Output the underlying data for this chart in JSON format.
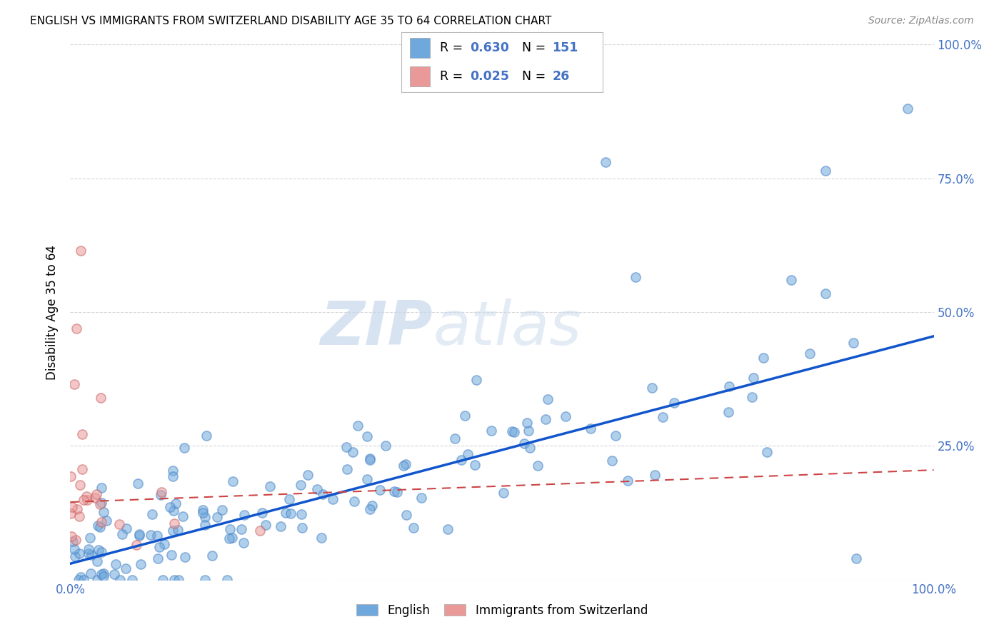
{
  "title": "ENGLISH VS IMMIGRANTS FROM SWITZERLAND DISABILITY AGE 35 TO 64 CORRELATION CHART",
  "source": "Source: ZipAtlas.com",
  "ylabel": "Disability Age 35 to 64",
  "legend_label_english": "English",
  "legend_label_swiss": "Immigrants from Switzerland",
  "watermark_zip": "ZIP",
  "watermark_atlas": "atlas",
  "english_color": "#6fa8dc",
  "english_edge_color": "#4a86c8",
  "swiss_color": "#ea9999",
  "swiss_edge_color": "#cc6666",
  "english_line_color": "#1155cc",
  "swiss_line_color": "#cc4444",
  "background_color": "#ffffff",
  "grid_color": "#cccccc",
  "tick_color": "#4472c4",
  "title_color": "#000000",
  "source_color": "#888888",
  "ylabel_color": "#000000",
  "legend_r_color": "#4472c4",
  "legend_n_color": "#4472c4",
  "legend_text_color": "#000000",
  "xlim": [
    0.0,
    1.0
  ],
  "ylim": [
    0.0,
    1.0
  ],
  "x_ticks": [
    0.0,
    0.25,
    0.5,
    0.75,
    1.0
  ],
  "y_ticks": [
    0.0,
    0.25,
    0.5,
    0.75,
    1.0
  ],
  "x_tick_labels": [
    "0.0%",
    "",
    "",
    "",
    "100.0%"
  ],
  "y_tick_labels_right": [
    "",
    "25.0%",
    "50.0%",
    "75.0%",
    "100.0%"
  ],
  "legend_english_R": "0.630",
  "legend_english_N": "151",
  "legend_swiss_R": "0.025",
  "legend_swiss_N": "26",
  "eng_line_start_y": 0.03,
  "eng_line_end_y": 0.455,
  "swiss_line_start_y": 0.145,
  "swiss_line_end_y": 0.205
}
